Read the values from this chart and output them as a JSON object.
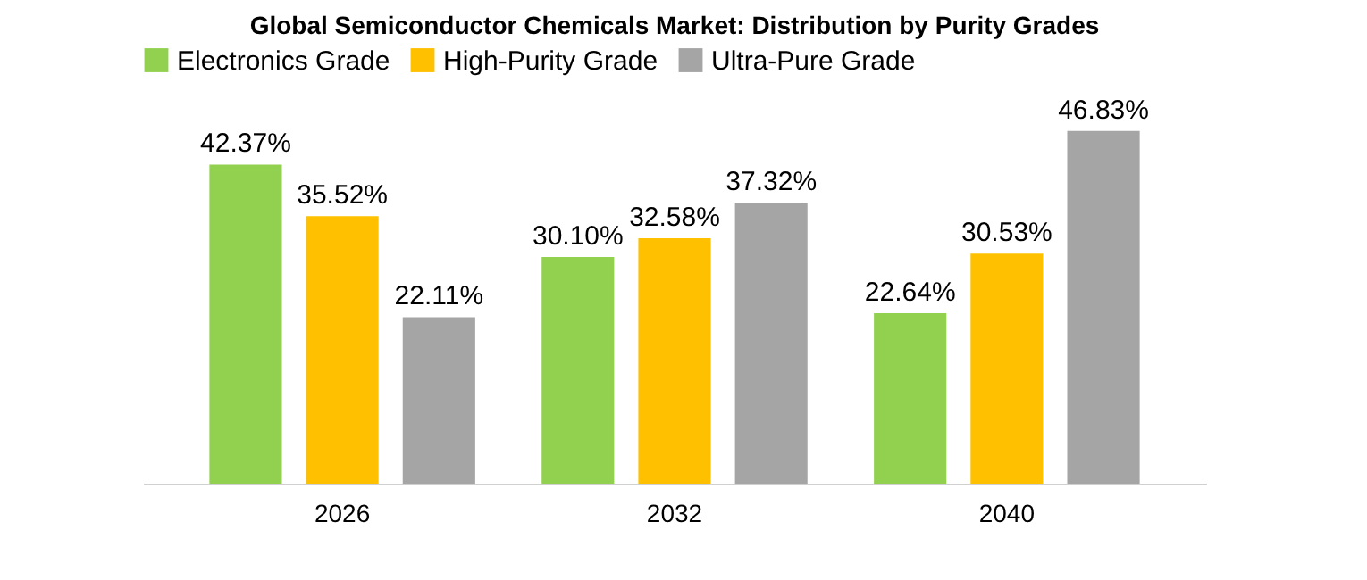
{
  "chart_data": {
    "type": "bar",
    "title": "Global Semiconductor Chemicals Market: Distribution by Purity Grades",
    "categories": [
      "2026",
      "2032",
      "2040"
    ],
    "series": [
      {
        "name": "Electronics Grade",
        "color": "#92d050",
        "values": [
          42.37,
          30.1,
          22.64
        ],
        "value_labels": [
          "42.37%",
          "30.10%",
          "22.64%"
        ]
      },
      {
        "name": "High-Purity Grade",
        "color": "#ffc000",
        "values": [
          35.52,
          32.58,
          30.53
        ],
        "value_labels": [
          "35.52%",
          "32.58%",
          "30.53%"
        ]
      },
      {
        "name": "Ultra-Pure Grade",
        "color": "#a5a5a5",
        "values": [
          22.11,
          37.32,
          46.83
        ],
        "value_labels": [
          "22.11%",
          "37.32%",
          "46.83%"
        ]
      }
    ],
    "legend": "top",
    "grid": false
  }
}
